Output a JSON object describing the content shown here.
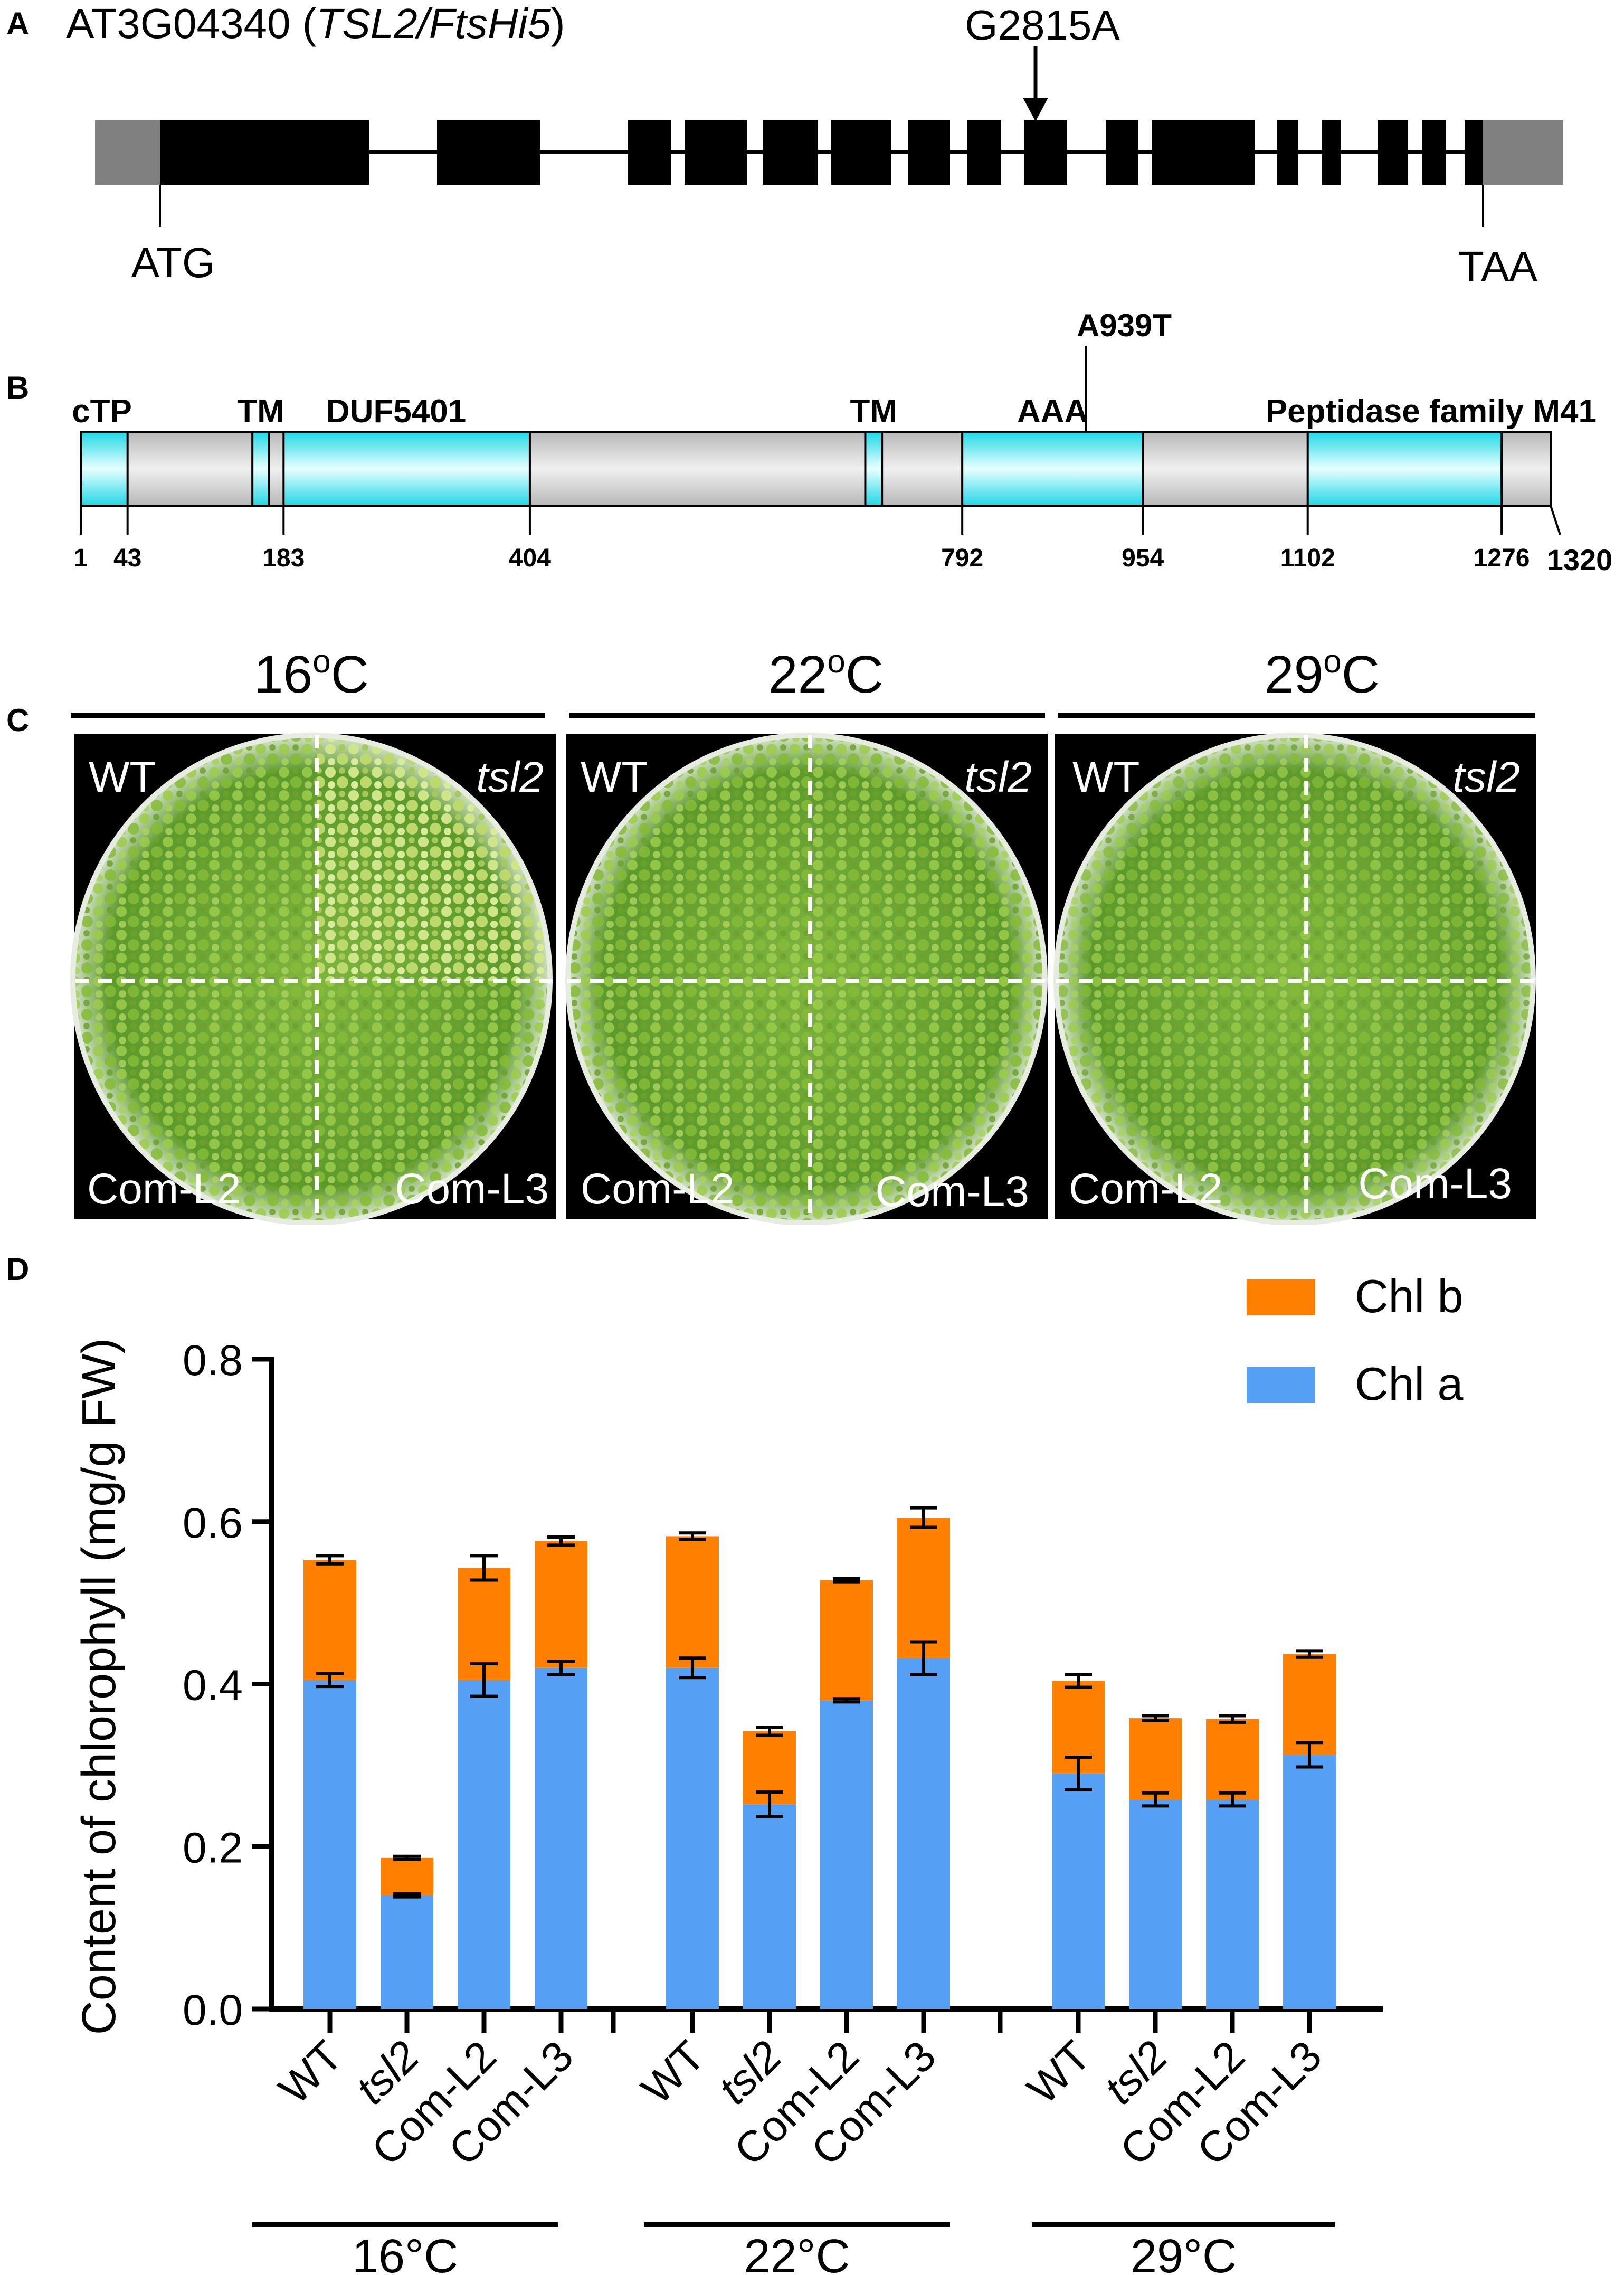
{
  "panel_labels": [
    "A",
    "B",
    "C",
    "D"
  ],
  "panelA": {
    "gene_id": "AT3G04340 (",
    "gene_name": "TSL2/FtsHi5",
    "gene_close": ")",
    "mutation": "G2815A",
    "start_codon": "ATG",
    "stop_codon": "TAA",
    "colors": {
      "utr": "#808080",
      "exon": "#000000"
    }
  },
  "panelB": {
    "mutation": "A939T",
    "length_max": 1320,
    "domains": [
      {
        "label": "cTP",
        "start": 1,
        "end": 43
      },
      {
        "label": "TM",
        "start": 155,
        "end": 170
      },
      {
        "label": "DUF5401",
        "start": 183,
        "end": 404
      },
      {
        "label": "TM",
        "start": 705,
        "end": 720
      },
      {
        "label": "AAA",
        "start": 792,
        "end": 954
      },
      {
        "label": "Peptidase family M41",
        "start": 1102,
        "end": 1276
      }
    ],
    "ticks": [
      "1",
      "43",
      "183",
      "404",
      "792",
      "954",
      "1102",
      "1276",
      "1320"
    ],
    "colors": {
      "domain": "#33e0e8",
      "backbone": "#c8c8c8"
    }
  },
  "panelC": {
    "temps": [
      {
        "deg": "16",
        "sup": "o",
        "unit": "C"
      },
      {
        "deg": "22",
        "sup": "o",
        "unit": "C"
      },
      {
        "deg": "29",
        "sup": "o",
        "unit": "C"
      }
    ],
    "quadrants": {
      "tl": "WT",
      "tr": "tsl2",
      "bl": "Com-L2",
      "br": "Com-L3"
    }
  },
  "chart_data": {
    "type": "bar",
    "stacked": true,
    "ylabel": "Content of chlorophyll (mg/g FW)",
    "ylim": [
      0,
      0.8
    ],
    "yticks": [
      "0.0",
      "0.2",
      "0.4",
      "0.6",
      "0.8"
    ],
    "legend": [
      {
        "name": "Chl b",
        "color": "#ff8000"
      },
      {
        "name": "Chl a",
        "color": "#55a0f5"
      }
    ],
    "groups": [
      {
        "label": "16°C",
        "categories": [
          "WT",
          "tsl2",
          "Com-L2",
          "Com-L3"
        ],
        "chl_a": [
          0.405,
          0.14,
          0.405,
          0.42
        ],
        "chl_a_err": [
          0.008,
          0.002,
          0.02,
          0.008
        ],
        "total": [
          0.553,
          0.186,
          0.543,
          0.576
        ],
        "total_err": [
          0.005,
          0.002,
          0.015,
          0.005
        ]
      },
      {
        "label": "22°C",
        "categories": [
          "WT",
          "tsl2",
          "Com-L2",
          "Com-L3"
        ],
        "chl_a": [
          0.42,
          0.252,
          0.38,
          0.432
        ],
        "chl_a_err": [
          0.012,
          0.015,
          0.002,
          0.02
        ],
        "total": [
          0.582,
          0.342,
          0.528,
          0.605
        ],
        "total_err": [
          0.004,
          0.005,
          0.002,
          0.012
        ]
      },
      {
        "label": "29°C",
        "categories": [
          "WT",
          "tsl2",
          "Com-L2",
          "Com-L3"
        ],
        "chl_a": [
          0.29,
          0.258,
          0.258,
          0.313
        ],
        "chl_a_err": [
          0.02,
          0.008,
          0.008,
          0.015
        ],
        "total": [
          0.404,
          0.358,
          0.357,
          0.437
        ],
        "total_err": [
          0.008,
          0.003,
          0.004,
          0.004
        ]
      }
    ]
  }
}
